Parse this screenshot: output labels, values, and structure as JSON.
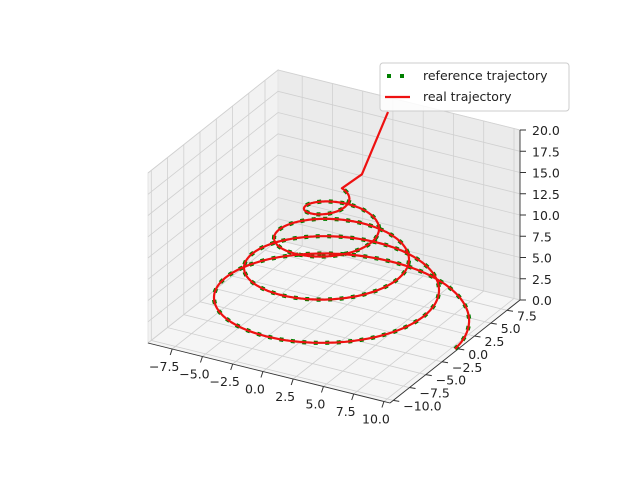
{
  "chart_data": {
    "type": "line",
    "projection": "3d",
    "title": "",
    "xlabel": "",
    "ylabel": "",
    "zlabel": "",
    "xlim": [
      -9.5,
      10.5
    ],
    "ylim": [
      -10.5,
      9.5
    ],
    "zlim": [
      0,
      20
    ],
    "xticks": [
      "−7.5",
      "−5.0",
      "−2.5",
      "0.0",
      "2.5",
      "5.0",
      "7.5",
      "10.0"
    ],
    "yticks": [
      "−10.0",
      "−7.5",
      "−5.0",
      "−2.5",
      "0.0",
      "2.5",
      "5.0",
      "7.5"
    ],
    "zticks": [
      "0.0",
      "2.5",
      "5.0",
      "7.5",
      "10.0",
      "12.5",
      "15.0",
      "17.5",
      "20.0"
    ],
    "grid": true,
    "legend_position": "top-right",
    "helix": {
      "description": "conical helix: radius shrinks as z rises",
      "turns": 4.2,
      "z_start": 0.3,
      "z_end": 15.3,
      "radius_start": 10,
      "radius_end": 0.8
    },
    "series": [
      {
        "name": "reference trajectory",
        "style": "dotted",
        "color": "#007f00"
      },
      {
        "name": "real trajectory",
        "style": "solid",
        "color": "#ee1111"
      }
    ]
  }
}
